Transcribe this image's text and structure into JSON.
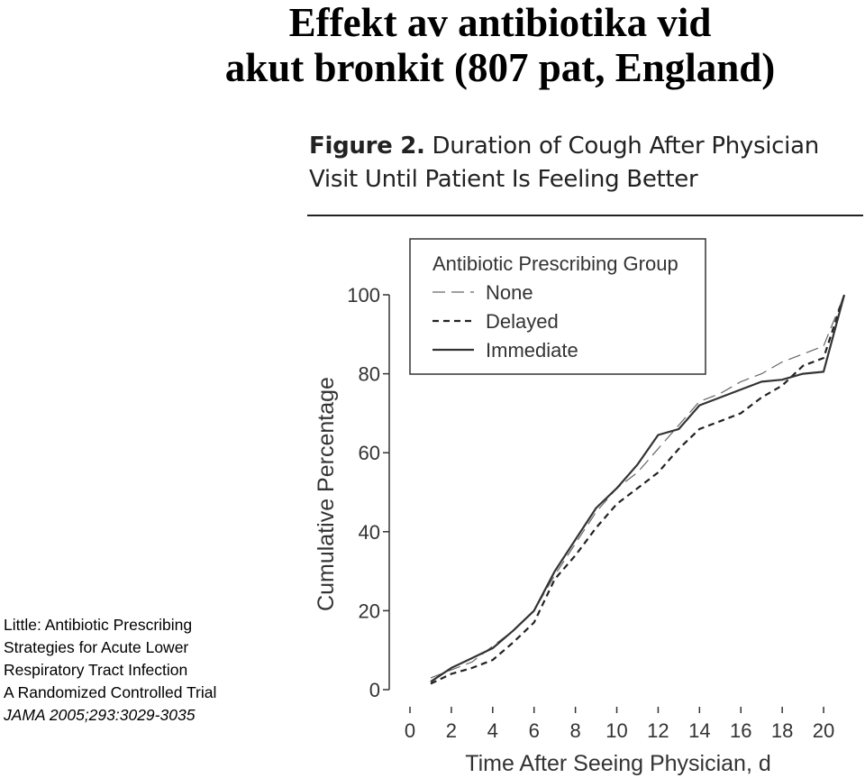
{
  "slide": {
    "title_line1": "Effekt av antibiotika vid",
    "title_line2": "akut bronkit (807 pat, England)"
  },
  "citation": {
    "lines": [
      "Little: Antibiotic Prescribing",
      "Strategies for Acute Lower",
      "Respiratory Tract Infection",
      "A Randomized Controlled Trial"
    ],
    "journal": "JAMA 2005;293:3029-3035"
  },
  "figure": {
    "label": "Figure 2.",
    "caption": "Duration of Cough After Physician Visit Until Patient Is Feeling Better"
  },
  "chart_data": {
    "type": "line",
    "xlabel": "Time After Seeing Physician, d",
    "ylabel": "Cumulative Percentage",
    "xlim": [
      0,
      21
    ],
    "ylim": [
      0,
      100
    ],
    "x_ticks": [
      "0",
      "2",
      "4",
      "6",
      "8",
      "10",
      "12",
      "14",
      "16",
      "18",
      "20"
    ],
    "y_ticks": [
      "0",
      "20",
      "40",
      "60",
      "80",
      "100"
    ],
    "legend": {
      "title": "Antibiotic Prescribing Group",
      "position": "top"
    },
    "series": [
      {
        "name": "None",
        "style": "long-dash",
        "color": "#666666",
        "points": [
          [
            1,
            3
          ],
          [
            2,
            5
          ],
          [
            3,
            7
          ],
          [
            4,
            11
          ],
          [
            5,
            15
          ],
          [
            6,
            20
          ],
          [
            7,
            29
          ],
          [
            8,
            37
          ],
          [
            9,
            45
          ],
          [
            10,
            51
          ],
          [
            11,
            55
          ],
          [
            12,
            61
          ],
          [
            13,
            67
          ],
          [
            14,
            73
          ],
          [
            15,
            75
          ],
          [
            16,
            78
          ],
          [
            17,
            80
          ],
          [
            18,
            83
          ],
          [
            19,
            85
          ],
          [
            20,
            87
          ],
          [
            21,
            100
          ]
        ]
      },
      {
        "name": "Delayed",
        "style": "short-dash",
        "color": "#222222",
        "points": [
          [
            1,
            1.5
          ],
          [
            2,
            4
          ],
          [
            3,
            5.5
          ],
          [
            4,
            7.5
          ],
          [
            5,
            12
          ],
          [
            6,
            17
          ],
          [
            7,
            28
          ],
          [
            8,
            34
          ],
          [
            9,
            41
          ],
          [
            10,
            47
          ],
          [
            11,
            51
          ],
          [
            12,
            55
          ],
          [
            13,
            61
          ],
          [
            14,
            66
          ],
          [
            15,
            68
          ],
          [
            16,
            70
          ],
          [
            17,
            74
          ],
          [
            18,
            77
          ],
          [
            19,
            82
          ],
          [
            20,
            84
          ],
          [
            21,
            100
          ]
        ]
      },
      {
        "name": "Immediate",
        "style": "solid",
        "color": "#333333",
        "points": [
          [
            1,
            2
          ],
          [
            2,
            5.5
          ],
          [
            3,
            8
          ],
          [
            4,
            10.5
          ],
          [
            5,
            15
          ],
          [
            6,
            20
          ],
          [
            7,
            30
          ],
          [
            8,
            38
          ],
          [
            9,
            46
          ],
          [
            10,
            51
          ],
          [
            11,
            57
          ],
          [
            12,
            64.5
          ],
          [
            13,
            66
          ],
          [
            14,
            72
          ],
          [
            15,
            74
          ],
          [
            16,
            76
          ],
          [
            17,
            78
          ],
          [
            18,
            78.5
          ],
          [
            19,
            80
          ],
          [
            20,
            80.5
          ],
          [
            21,
            100
          ]
        ]
      }
    ]
  }
}
